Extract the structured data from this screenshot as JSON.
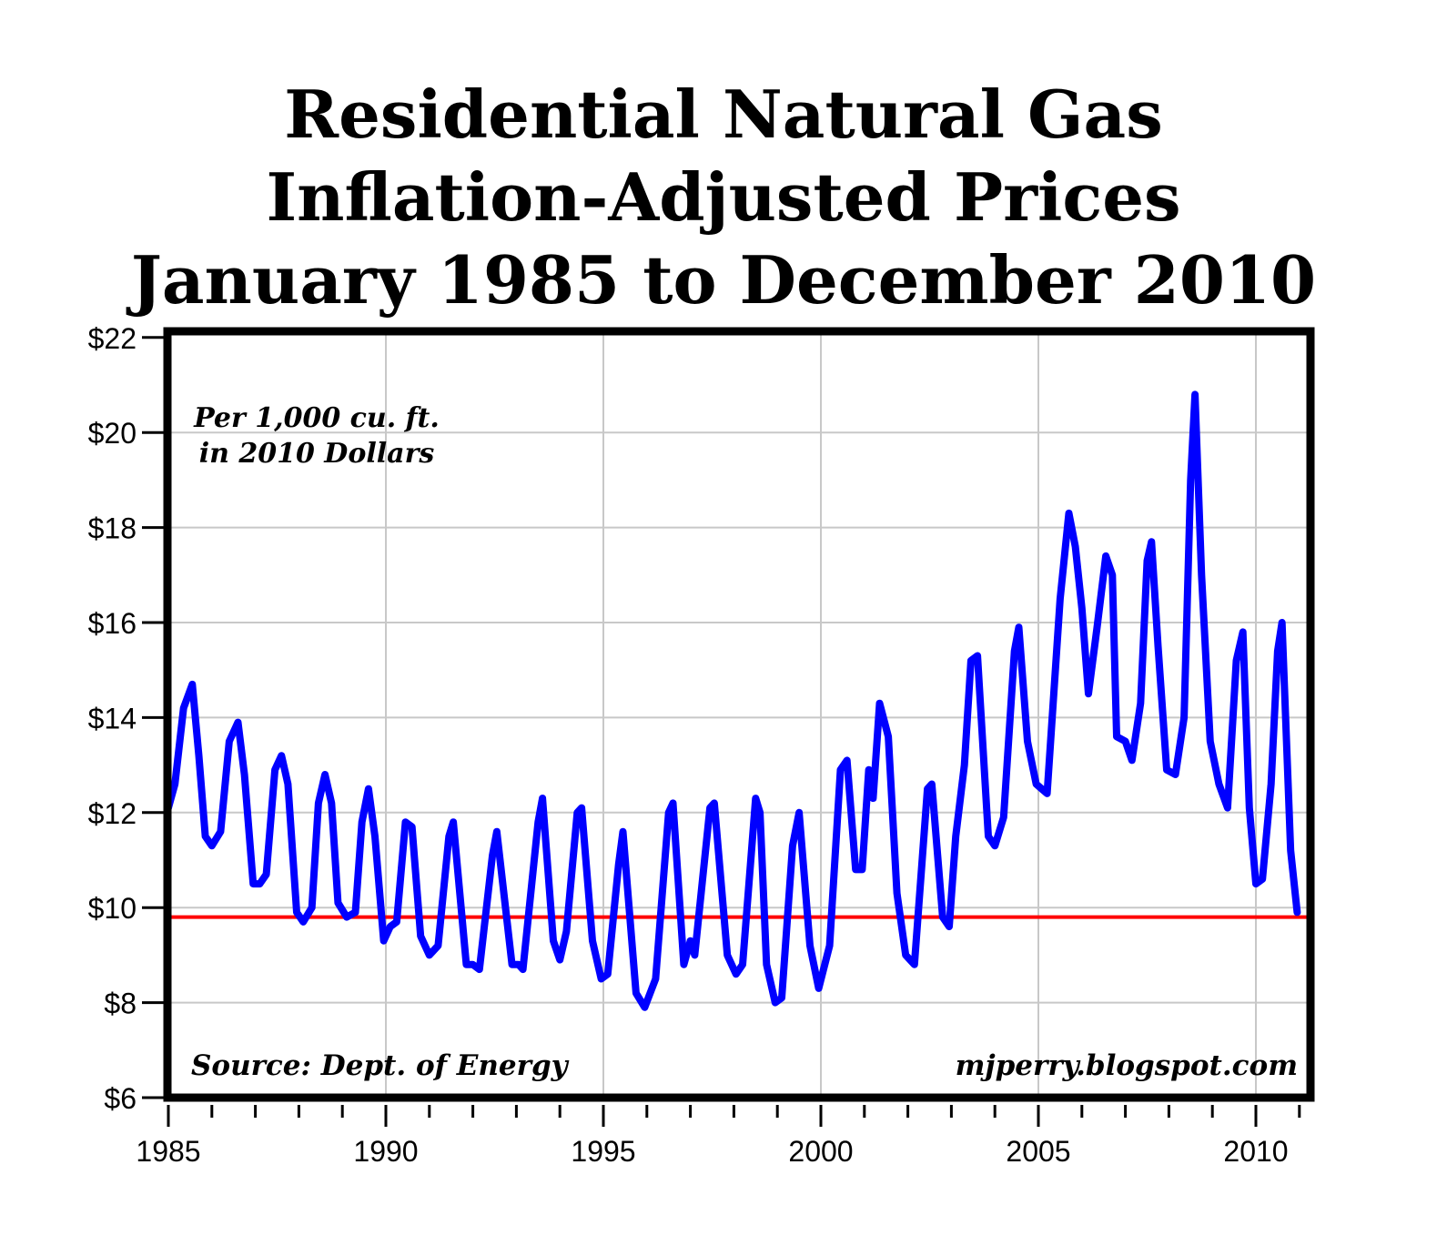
{
  "title": {
    "line1": "Residential Natural Gas",
    "line2": "Inflation-Adjusted Prices",
    "line3": "January 1985 to December 2010"
  },
  "annotations": {
    "unit_line1": "Per 1,000 cu. ft.",
    "unit_line2": "in 2010 Dollars",
    "source": "Source: Dept. of Energy",
    "credit": "mjperry.blogspot.com"
  },
  "colors": {
    "series": "#0000ff",
    "reference": "#ff0000",
    "grid": "#c8c8c8",
    "frame": "#000000"
  },
  "chart_data": {
    "type": "line",
    "title": "Residential Natural Gas Inflation-Adjusted Prices January 1985 to December 2010",
    "xlabel": "",
    "ylabel": "",
    "xlim": [
      1985,
      2011
    ],
    "ylim": [
      6,
      22
    ],
    "grid": true,
    "y_ticks": [
      6,
      8,
      10,
      12,
      14,
      16,
      18,
      20,
      22
    ],
    "y_tick_labels": [
      "$6",
      "$8",
      "$10",
      "$12",
      "$14",
      "$16",
      "$18",
      "$20",
      "$22"
    ],
    "x_ticks": [
      1985,
      1990,
      1995,
      2000,
      2005,
      2010
    ],
    "x_tick_labels": [
      "1985",
      "1990",
      "1995",
      "2000",
      "2005",
      "2010"
    ],
    "reference_line": {
      "value": 9.8,
      "color": "#ff0000"
    },
    "series": [
      {
        "name": "Residential natural gas price (2010 $ per 1,000 cu. ft.)",
        "color": "#0000ff",
        "points": [
          [
            1985.0,
            12.1
          ],
          [
            1985.15,
            12.6
          ],
          [
            1985.35,
            14.2
          ],
          [
            1985.55,
            14.7
          ],
          [
            1985.7,
            13.2
          ],
          [
            1985.85,
            11.5
          ],
          [
            1986.0,
            11.3
          ],
          [
            1986.2,
            11.6
          ],
          [
            1986.4,
            13.5
          ],
          [
            1986.6,
            13.9
          ],
          [
            1986.75,
            12.8
          ],
          [
            1986.95,
            10.5
          ],
          [
            1987.1,
            10.5
          ],
          [
            1987.25,
            10.7
          ],
          [
            1987.45,
            12.9
          ],
          [
            1987.6,
            13.2
          ],
          [
            1987.75,
            12.6
          ],
          [
            1987.95,
            9.9
          ],
          [
            1988.1,
            9.7
          ],
          [
            1988.3,
            10.0
          ],
          [
            1988.45,
            12.2
          ],
          [
            1988.6,
            12.8
          ],
          [
            1988.75,
            12.2
          ],
          [
            1988.9,
            10.1
          ],
          [
            1989.1,
            9.8
          ],
          [
            1989.3,
            9.9
          ],
          [
            1989.45,
            11.8
          ],
          [
            1989.6,
            12.5
          ],
          [
            1989.75,
            11.5
          ],
          [
            1989.95,
            9.3
          ],
          [
            1990.1,
            9.6
          ],
          [
            1990.25,
            9.7
          ],
          [
            1990.45,
            11.8
          ],
          [
            1990.6,
            11.7
          ],
          [
            1990.8,
            9.4
          ],
          [
            1991.0,
            9.0
          ],
          [
            1991.2,
            9.2
          ],
          [
            1991.45,
            11.5
          ],
          [
            1991.55,
            11.8
          ],
          [
            1991.85,
            8.8
          ],
          [
            1992.0,
            8.8
          ],
          [
            1992.15,
            8.7
          ],
          [
            1992.45,
            11.1
          ],
          [
            1992.55,
            11.6
          ],
          [
            1992.9,
            8.8
          ],
          [
            1993.05,
            8.8
          ],
          [
            1993.15,
            8.7
          ],
          [
            1993.5,
            11.8
          ],
          [
            1993.6,
            12.3
          ],
          [
            1993.85,
            9.3
          ],
          [
            1994.0,
            8.9
          ],
          [
            1994.15,
            9.5
          ],
          [
            1994.4,
            12.0
          ],
          [
            1994.5,
            12.1
          ],
          [
            1994.75,
            9.3
          ],
          [
            1994.95,
            8.5
          ],
          [
            1995.1,
            8.6
          ],
          [
            1995.35,
            10.9
          ],
          [
            1995.45,
            11.6
          ],
          [
            1995.75,
            8.2
          ],
          [
            1995.95,
            7.9
          ],
          [
            1996.2,
            8.5
          ],
          [
            1996.5,
            12.0
          ],
          [
            1996.6,
            12.2
          ],
          [
            1996.85,
            8.8
          ],
          [
            1997.0,
            9.3
          ],
          [
            1997.1,
            9.0
          ],
          [
            1997.45,
            12.1
          ],
          [
            1997.55,
            12.2
          ],
          [
            1997.85,
            9.0
          ],
          [
            1998.05,
            8.6
          ],
          [
            1998.2,
            8.8
          ],
          [
            1998.5,
            12.3
          ],
          [
            1998.6,
            12.0
          ],
          [
            1998.75,
            8.8
          ],
          [
            1998.95,
            8.0
          ],
          [
            1999.1,
            8.1
          ],
          [
            1999.35,
            11.3
          ],
          [
            1999.5,
            12.0
          ],
          [
            1999.75,
            9.2
          ],
          [
            1999.95,
            8.3
          ],
          [
            2000.2,
            9.2
          ],
          [
            2000.45,
            12.9
          ],
          [
            2000.6,
            13.1
          ],
          [
            2000.8,
            10.8
          ],
          [
            2000.95,
            10.8
          ],
          [
            2001.1,
            12.9
          ],
          [
            2001.2,
            12.3
          ],
          [
            2001.35,
            14.3
          ],
          [
            2001.55,
            13.6
          ],
          [
            2001.75,
            10.3
          ],
          [
            2001.95,
            9.0
          ],
          [
            2002.15,
            8.8
          ],
          [
            2002.45,
            12.5
          ],
          [
            2002.55,
            12.6
          ],
          [
            2002.8,
            9.8
          ],
          [
            2002.95,
            9.6
          ],
          [
            2003.1,
            11.5
          ],
          [
            2003.3,
            13.0
          ],
          [
            2003.45,
            15.2
          ],
          [
            2003.6,
            15.3
          ],
          [
            2003.85,
            11.5
          ],
          [
            2004.0,
            11.3
          ],
          [
            2004.2,
            11.9
          ],
          [
            2004.45,
            15.4
          ],
          [
            2004.55,
            15.9
          ],
          [
            2004.75,
            13.5
          ],
          [
            2004.95,
            12.6
          ],
          [
            2005.2,
            12.4
          ],
          [
            2005.5,
            16.5
          ],
          [
            2005.7,
            18.3
          ],
          [
            2005.85,
            17.6
          ],
          [
            2006.0,
            16.3
          ],
          [
            2006.15,
            14.5
          ],
          [
            2006.35,
            15.9
          ],
          [
            2006.55,
            17.4
          ],
          [
            2006.7,
            17.0
          ],
          [
            2006.8,
            13.6
          ],
          [
            2007.0,
            13.5
          ],
          [
            2007.15,
            13.1
          ],
          [
            2007.35,
            14.3
          ],
          [
            2007.5,
            17.3
          ],
          [
            2007.6,
            17.7
          ],
          [
            2007.75,
            15.5
          ],
          [
            2007.95,
            12.9
          ],
          [
            2008.15,
            12.8
          ],
          [
            2008.35,
            14.0
          ],
          [
            2008.5,
            19.0
          ],
          [
            2008.6,
            20.8
          ],
          [
            2008.75,
            17.0
          ],
          [
            2008.95,
            13.5
          ],
          [
            2009.15,
            12.6
          ],
          [
            2009.35,
            12.1
          ],
          [
            2009.55,
            15.2
          ],
          [
            2009.7,
            15.8
          ],
          [
            2009.85,
            12.1
          ],
          [
            2010.0,
            10.5
          ],
          [
            2010.15,
            10.6
          ],
          [
            2010.35,
            12.6
          ],
          [
            2010.5,
            15.4
          ],
          [
            2010.6,
            16.0
          ],
          [
            2010.8,
            11.2
          ],
          [
            2010.95,
            9.9
          ]
        ]
      }
    ]
  }
}
